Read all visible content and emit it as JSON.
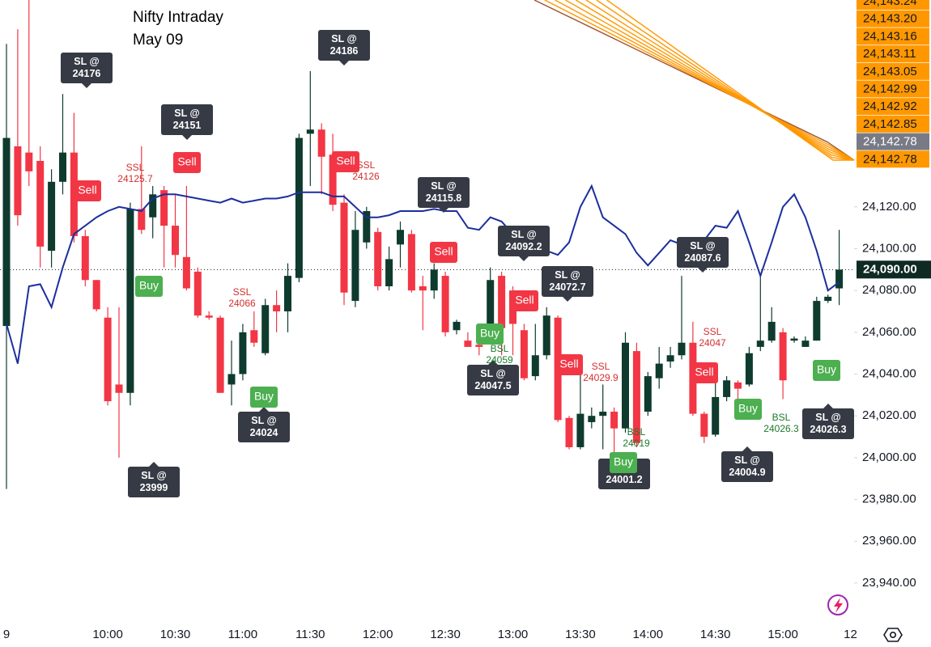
{
  "chart_data": {
    "type": "candlestick",
    "title": "Nifty Intraday",
    "subtitle": "May 09",
    "categories": [
      "9",
      null,
      null,
      null,
      null,
      null,
      null,
      null,
      null,
      "10:00",
      null,
      null,
      null,
      null,
      null,
      "10:30",
      null,
      null,
      null,
      null,
      null,
      "11:00",
      null,
      null,
      null,
      null,
      null,
      "11:30",
      null,
      null,
      null,
      null,
      null,
      "12:00",
      null,
      null,
      null,
      null,
      null,
      "12:30",
      null,
      null,
      null,
      null,
      null,
      "13:00",
      null,
      null,
      null,
      null,
      null,
      "13:30",
      null,
      null,
      null,
      null,
      null,
      "14:00",
      null,
      null,
      null,
      null,
      null,
      "14:30",
      null,
      null,
      null,
      null,
      null,
      "15:00",
      null,
      null,
      null,
      null,
      null,
      "12"
    ],
    "open": [
      24063,
      24149,
      24146,
      24142,
      24099,
      24132,
      24146,
      24106,
      24085,
      24067,
      24035,
      24031,
      24119,
      24115,
      24128,
      24111,
      24096,
      24089,
      24068,
      24067,
      24035,
      24040,
      24061,
      24050,
      24073,
      24070,
      24086,
      24155,
      24157,
      24145,
      24122,
      24075,
      24103,
      24108,
      24082,
      24102,
      24107,
      24082,
      24080,
      24087,
      24061,
      24056,
      24054,
      24058,
      24087,
      24080,
      24061,
      24039,
      24049,
      24067,
      24019,
      24005,
      24017,
      24020,
      24022,
      24014,
      24051,
      24022,
      24038,
      24046,
      24049,
      24055,
      24021,
      24011,
      24029,
      24036,
      24035,
      24053,
      24056,
      24060,
      24056,
      24053,
      24056,
      24075,
      24081,
      null
    ],
    "high": [
      24198,
      24205,
      24219,
      24149,
      24138,
      24174,
      24165,
      24109,
      24085,
      24072,
      24072,
      24122,
      24149,
      24130,
      24130,
      24126,
      24130,
      24091,
      24070,
      24068,
      24056,
      24064,
      24070,
      24076,
      24080,
      24093,
      24155,
      24185,
      24160,
      24155,
      24126,
      24118,
      24120,
      24110,
      24101,
      24113,
      24109,
      24087,
      24093,
      24089,
      24066,
      24060,
      24058,
      24091,
      24089,
      24082,
      24064,
      24064,
      24072,
      24068,
      24020,
      24041,
      24024,
      24035,
      24024,
      24060,
      24055,
      24041,
      24053,
      24053,
      24087,
      24065,
      24022,
      24037,
      24039,
      24037,
      24053,
      24087,
      24072,
      24062,
      24058,
      24058,
      24077,
      24078,
      24109,
      null
    ],
    "low": [
      23985,
      24111,
      24130,
      24091,
      24091,
      24126,
      24103,
      24082,
      24070,
      24025,
      24000,
      24025,
      24107,
      24105,
      24091,
      24091,
      24080,
      24067,
      24066,
      24031,
      24025,
      24037,
      24053,
      24049,
      24060,
      24060,
      24084,
      24130,
      24126,
      24118,
      24073,
      24072,
      24100,
      24080,
      24080,
      24091,
      24079,
      24061,
      24076,
      24058,
      24059,
      24053,
      24049,
      24056,
      24049,
      24049,
      24037,
      24037,
      24047,
      24017,
      24004,
      24004,
      24014,
      24004,
      24002,
      24012,
      24005,
      24020,
      24033,
      24043,
      24047,
      24020,
      24007,
      24010,
      24027,
      24025,
      24034,
      24051,
      24055,
      24028,
      24055,
      24053,
      24056,
      24074,
      24073,
      null
    ],
    "close": [
      24153,
      24116,
      24137,
      24101,
      24132,
      24146,
      24106,
      24085,
      24071,
      24027,
      24031,
      24119,
      24109,
      24126,
      24111,
      24097,
      24081,
      24068,
      24067,
      24031,
      24040,
      24060,
      24055,
      24073,
      24070,
      24087,
      24153,
      24157,
      24144,
      24121,
      24079,
      24109,
      24118,
      24082,
      24095,
      24109,
      24080,
      24080,
      24090,
      24060,
      24065,
      24053,
      24053,
      24085,
      24062,
      24064,
      24038,
      24049,
      24068,
      24018,
      24005,
      24021,
      24020,
      24022,
      24014,
      24055,
      24007,
      24039,
      24045,
      24049,
      24055,
      24021,
      24010,
      24029,
      24037,
      24033,
      24050,
      24056,
      24065,
      24037,
      24057,
      24056,
      24075,
      24077,
      24090,
      null
    ],
    "up_color": "#0e3b2e",
    "down_color": "#f23645",
    "line": {
      "color": "#1c2f9e",
      "values": [
        24064,
        24045,
        24082,
        24083,
        24072,
        24091,
        24107,
        24111,
        24115,
        24118,
        24120,
        24119,
        24118,
        24124,
        24126,
        24126,
        24125,
        24124,
        24123,
        24122,
        24124,
        24122,
        24123,
        24124,
        24124,
        24125,
        24127,
        24127,
        24127,
        24125,
        24125,
        24120,
        24115,
        24115,
        24116,
        24118,
        24118,
        24118,
        24119,
        24118,
        24118,
        24110,
        24109,
        24115,
        24113,
        24107,
        24104,
        24107,
        24099,
        24097,
        24103,
        24120,
        24130,
        24115,
        24111,
        24107,
        24098,
        24092,
        24098,
        24104,
        24102,
        24103,
        24104,
        24111,
        24110,
        24118,
        24103,
        24087,
        24103,
        24120,
        24126,
        24115,
        24099,
        24080,
        24084,
        null
      ]
    },
    "ylim": [
      23921,
      24219
    ],
    "yticks": [
      {
        "value": 24120,
        "label": "24,120.00"
      },
      {
        "value": 24100,
        "label": "24,100.00"
      },
      {
        "value": 24080,
        "label": "24,080.00"
      },
      {
        "value": 24060,
        "label": "24,060.00"
      },
      {
        "value": 24040,
        "label": "24,040.00"
      },
      {
        "value": 24020,
        "label": "24,020.00"
      },
      {
        "value": 24000,
        "label": "24,000.00"
      },
      {
        "value": 23980,
        "label": "23,980.00"
      },
      {
        "value": 23960,
        "label": "23,960.00"
      },
      {
        "value": 23940,
        "label": "23,940.00"
      }
    ],
    "last_price": {
      "value": 24090,
      "label": "24,090.00"
    },
    "price_tags": [
      {
        "value": 24143.24,
        "label": "24,143.24"
      },
      {
        "value": 24143.2,
        "label": "24,143.20"
      },
      {
        "value": 24143.16,
        "label": "24,143.16"
      },
      {
        "value": 24143.11,
        "label": "24,143.11"
      },
      {
        "value": 24143.05,
        "label": "24,143.05"
      },
      {
        "value": 24142.99,
        "label": "24,142.99"
      },
      {
        "value": 24142.92,
        "label": "24,142.92"
      },
      {
        "value": 24142.85,
        "label": "24,142.85"
      },
      {
        "value": 24142.78,
        "label": "24,142.78"
      },
      {
        "value": 24142.78,
        "label": "24,142.78"
      }
    ],
    "tag_color": "#ff9800",
    "annotations": [
      {
        "style": "sl",
        "lines": [
          "SL @",
          "24176"
        ]
      },
      {
        "style": "sl",
        "lines": [
          "SL @",
          "24151"
        ]
      },
      {
        "style": "sl",
        "lines": [
          "SL @",
          "24186"
        ]
      },
      {
        "style": "sl",
        "lines": [
          "SL @",
          "24115.8"
        ]
      },
      {
        "style": "sl",
        "lines": [
          "SL @",
          "24092.2"
        ]
      },
      {
        "style": "sl",
        "lines": [
          "SL @",
          "24072.7"
        ]
      },
      {
        "style": "sl",
        "lines": [
          "SL @",
          "24087.6"
        ]
      },
      {
        "style": "sl",
        "lines": [
          "SL @",
          "24047.5"
        ]
      },
      {
        "style": "sl",
        "lines": [
          "SL @",
          "24024"
        ]
      },
      {
        "style": "sl",
        "lines": [
          "SL @",
          "23999"
        ]
      },
      {
        "style": "sl",
        "lines": [
          "SL @",
          "24001.2"
        ]
      },
      {
        "style": "sl",
        "lines": [
          "SL @",
          "24004.9"
        ]
      },
      {
        "style": "sl",
        "lines": [
          "SL @",
          "24026.3"
        ]
      },
      {
        "style": "ssl",
        "lines": [
          "SSL",
          "24125.7"
        ]
      },
      {
        "style": "ssl",
        "lines": [
          "SSL",
          "24066"
        ]
      },
      {
        "style": "ssl",
        "lines": [
          "SSL",
          "24126"
        ]
      },
      {
        "style": "ssl",
        "lines": [
          "SSL",
          "24029.9"
        ]
      },
      {
        "style": "ssl",
        "lines": [
          "SSL",
          "24047"
        ]
      },
      {
        "style": "bsl",
        "lines": [
          "BSL",
          "24059"
        ]
      },
      {
        "style": "bsl",
        "lines": [
          "BSL",
          "24019"
        ]
      },
      {
        "style": "bsl",
        "lines": [
          "BSL",
          "24026.3"
        ]
      },
      {
        "style": "sell",
        "lines": [
          "Sell"
        ]
      },
      {
        "style": "sell",
        "lines": [
          "Sell"
        ]
      },
      {
        "style": "sell",
        "lines": [
          "Sell"
        ]
      },
      {
        "style": "sell",
        "lines": [
          "Sell"
        ]
      },
      {
        "style": "sell",
        "lines": [
          "Sell"
        ]
      },
      {
        "style": "sell",
        "lines": [
          "Sell"
        ]
      },
      {
        "style": "sell",
        "lines": [
          "Sell"
        ]
      },
      {
        "style": "buy",
        "lines": [
          "Buy"
        ]
      },
      {
        "style": "buy",
        "lines": [
          "Buy"
        ]
      },
      {
        "style": "buy",
        "lines": [
          "Buy"
        ]
      },
      {
        "style": "buy",
        "lines": [
          "Buy"
        ]
      },
      {
        "style": "buy",
        "lines": [
          "Buy"
        ]
      },
      {
        "style": "buy",
        "lines": [
          "Buy"
        ]
      }
    ]
  }
}
